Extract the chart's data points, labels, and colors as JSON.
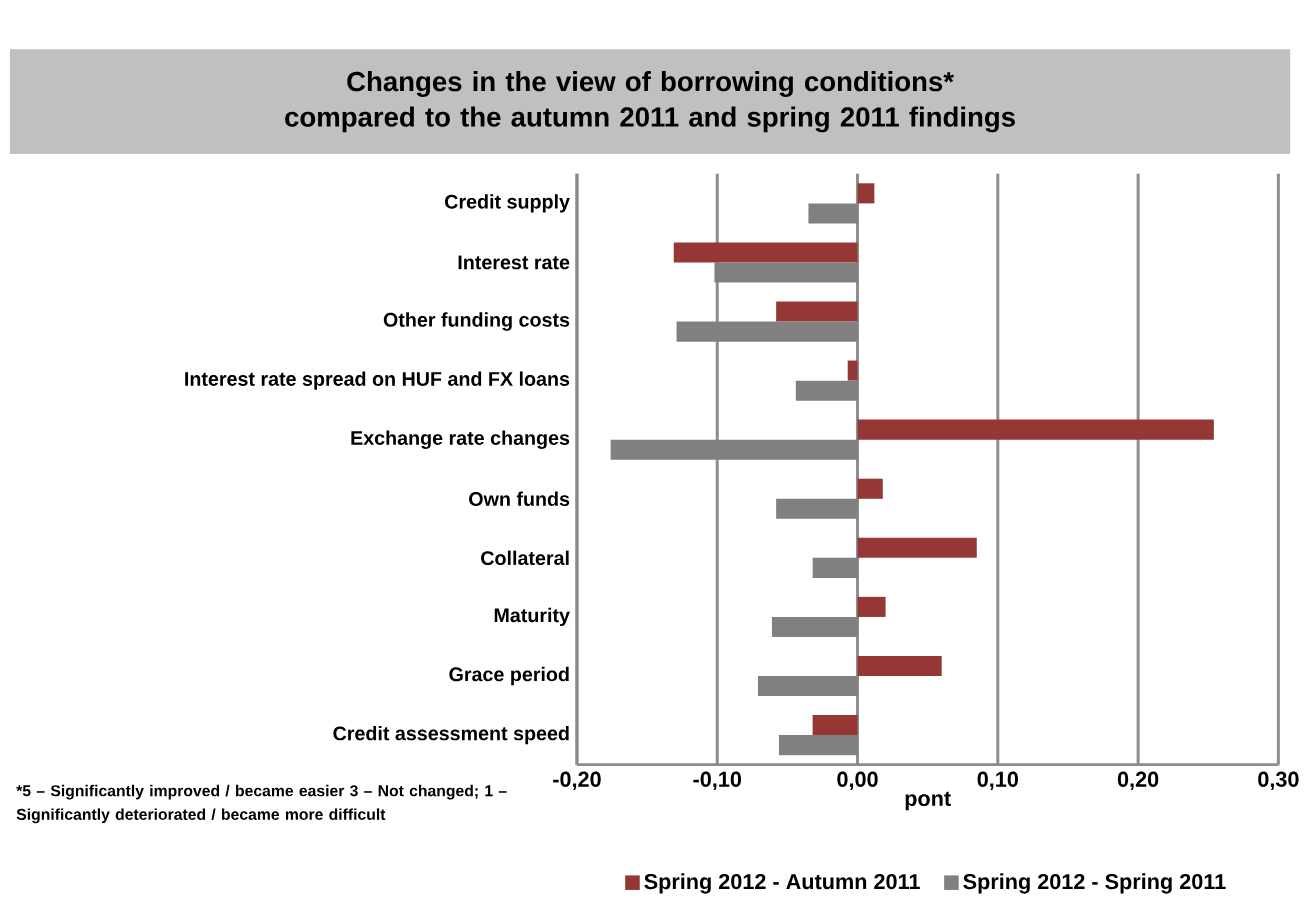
{
  "chart_data": {
    "type": "bar",
    "orientation": "horizontal",
    "title": "Changes in the view of borrowing conditions* compared to the autumn 2011 and spring 2011 findings",
    "xlabel": "pont",
    "categories": [
      "Credit supply",
      "Interest rate",
      "Other funding costs",
      "Interest rate spread on HUF and FX loans",
      "Exchange rate changes",
      "Own funds",
      "Collateral",
      "Maturity",
      "Grace period",
      "Credit assessment speed"
    ],
    "series": [
      {
        "name": "Spring 2012 - Autumn 2011",
        "color": "#953735",
        "values": [
          0.012,
          -0.131,
          -0.058,
          -0.007,
          0.254,
          0.018,
          0.085,
          0.02,
          0.06,
          -0.032
        ]
      },
      {
        "name": "Spring 2012 - Spring 2011",
        "color": "#808080",
        "values": [
          -0.035,
          -0.102,
          -0.129,
          -0.044,
          -0.176,
          -0.058,
          -0.032,
          -0.061,
          -0.071,
          -0.056
        ]
      }
    ],
    "xlim": [
      -0.2,
      0.3
    ],
    "xticks": [
      {
        "value": -0.2,
        "label": "-0,20"
      },
      {
        "value": -0.1,
        "label": "-0,10"
      },
      {
        "value": 0,
        "label": "0,00"
      },
      {
        "value": 0.1,
        "label": "0,10"
      },
      {
        "value": 0.2,
        "label": "0,20"
      },
      {
        "value": 0.3,
        "label": "0,30"
      }
    ],
    "grid": "x",
    "legend": "bottom",
    "annotations": [
      "*5 – Significantly improved / became easier 3 – Not changed; 1 – Significantly deteriorated / became more difficult"
    ]
  }
}
